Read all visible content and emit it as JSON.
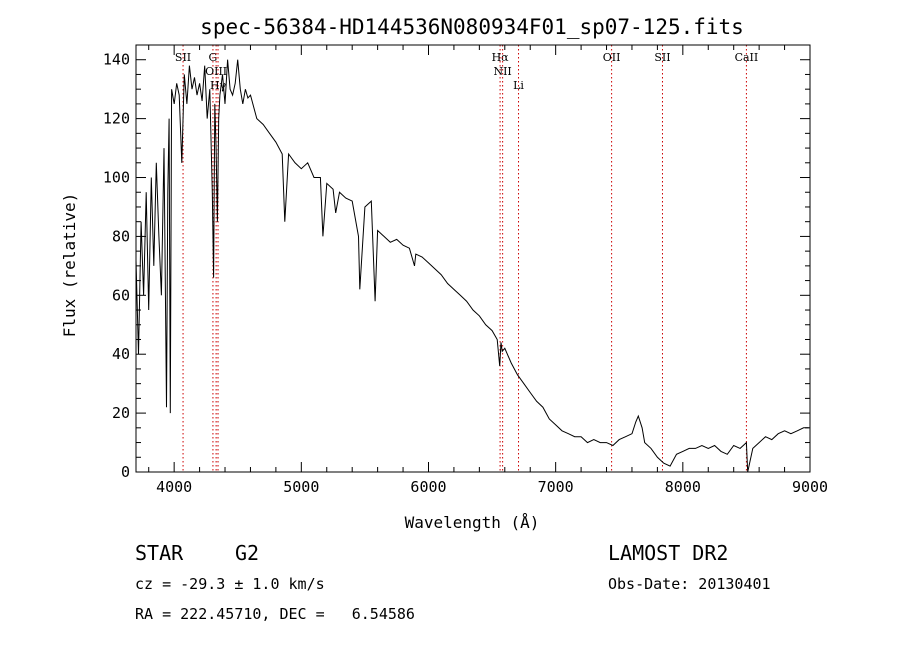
{
  "chart_data": {
    "type": "line",
    "title": "spec-56384-HD144536N080934F01_sp07-125.fits",
    "xlabel": "Wavelength (Å)",
    "ylabel": "Flux (relative)",
    "xlim": [
      3700,
      9000
    ],
    "ylim": [
      0,
      145
    ],
    "xticks": [
      4000,
      5000,
      6000,
      7000,
      8000,
      9000
    ],
    "yticks": [
      0,
      20,
      40,
      60,
      80,
      100,
      120,
      140
    ],
    "grid": false,
    "series": [
      {
        "color": "#000000",
        "x": [
          3700,
          3720,
          3740,
          3760,
          3780,
          3800,
          3820,
          3840,
          3860,
          3880,
          3900,
          3920,
          3940,
          3950,
          3960,
          3970,
          3980,
          4000,
          4020,
          4040,
          4060,
          4080,
          4100,
          4120,
          4140,
          4160,
          4180,
          4200,
          4220,
          4240,
          4260,
          4280,
          4300,
          4310,
          4320,
          4330,
          4340,
          4350,
          4360,
          4380,
          4400,
          4420,
          4440,
          4460,
          4480,
          4500,
          4520,
          4540,
          4560,
          4580,
          4600,
          4650,
          4700,
          4750,
          4800,
          4850,
          4870,
          4900,
          4950,
          5000,
          5050,
          5100,
          5150,
          5170,
          5200,
          5250,
          5270,
          5300,
          5350,
          5400,
          5450,
          5460,
          5500,
          5550,
          5580,
          5600,
          5650,
          5700,
          5750,
          5800,
          5850,
          5890,
          5900,
          5950,
          6000,
          6050,
          6100,
          6150,
          6200,
          6250,
          6300,
          6350,
          6400,
          6450,
          6500,
          6540,
          6560,
          6570,
          6580,
          6600,
          6650,
          6700,
          6750,
          6800,
          6850,
          6900,
          6950,
          7000,
          7050,
          7100,
          7150,
          7200,
          7250,
          7300,
          7350,
          7400,
          7450,
          7500,
          7550,
          7600,
          7630,
          7650,
          7680,
          7700,
          7750,
          7800,
          7850,
          7900,
          7950,
          8000,
          8050,
          8100,
          8150,
          8200,
          8250,
          8300,
          8350,
          8400,
          8450,
          8500,
          8510,
          8550,
          8600,
          8650,
          8700,
          8750,
          8800,
          8850,
          8900,
          8950,
          8990
        ],
        "y": [
          72,
          40,
          85,
          60,
          95,
          55,
          100,
          70,
          105,
          80,
          60,
          110,
          22,
          95,
          120,
          20,
          130,
          125,
          132,
          128,
          105,
          135,
          125,
          138,
          130,
          134,
          128,
          132,
          126,
          138,
          120,
          130,
          95,
          66,
          125,
          110,
          85,
          120,
          128,
          135,
          125,
          140,
          130,
          128,
          132,
          140,
          130,
          125,
          130,
          127,
          128,
          120,
          118,
          115,
          112,
          108,
          85,
          108,
          105,
          103,
          105,
          100,
          100,
          80,
          98,
          96,
          88,
          95,
          93,
          92,
          80,
          62,
          90,
          92,
          58,
          82,
          80,
          78,
          79,
          77,
          76,
          70,
          74,
          73,
          71,
          69,
          67,
          64,
          62,
          60,
          58,
          55,
          53,
          50,
          48,
          45,
          36,
          44,
          41,
          42,
          37,
          33,
          30,
          27,
          24,
          22,
          18,
          16,
          14,
          13,
          12,
          12,
          10,
          11,
          10,
          10,
          9,
          11,
          12,
          13,
          17,
          19,
          15,
          10,
          8,
          5,
          3,
          2,
          6,
          7,
          8,
          8,
          9,
          8,
          9,
          7,
          6,
          9,
          8,
          10,
          0,
          8,
          10,
          12,
          11,
          13,
          14,
          13,
          14,
          15,
          15
        ]
      }
    ],
    "annotation_lines": [
      {
        "label": "SII",
        "x": 4070,
        "color": "#cc0000"
      },
      {
        "label": "G",
        "x": 4305,
        "color": "#cc0000"
      },
      {
        "label": "OIII",
        "x": 4330,
        "color": "#cc0000"
      },
      {
        "label": "Hγ",
        "x": 4345,
        "color": "#cc0000"
      },
      {
        "label": "Hα",
        "x": 6563,
        "color": "#cc0000"
      },
      {
        "label": "NII",
        "x": 6583,
        "color": "#cc0000"
      },
      {
        "label": "Li",
        "x": 6708,
        "color": "#cc0000"
      },
      {
        "label": "OII",
        "x": 7440,
        "color": "#cc0000"
      },
      {
        "label": "SII",
        "x": 7840,
        "color": "#cc0000"
      },
      {
        "label": "CaII",
        "x": 8500,
        "color": "#cc0000"
      }
    ]
  },
  "info": {
    "object_class": "STAR",
    "subclass": "G2",
    "survey": "LAMOST DR2",
    "cz": "cz = -29.3 ± 1.0 km/s",
    "obs_date": "Obs-Date: 20130401",
    "coords": "RA = 222.45710, DEC =   6.54586"
  }
}
